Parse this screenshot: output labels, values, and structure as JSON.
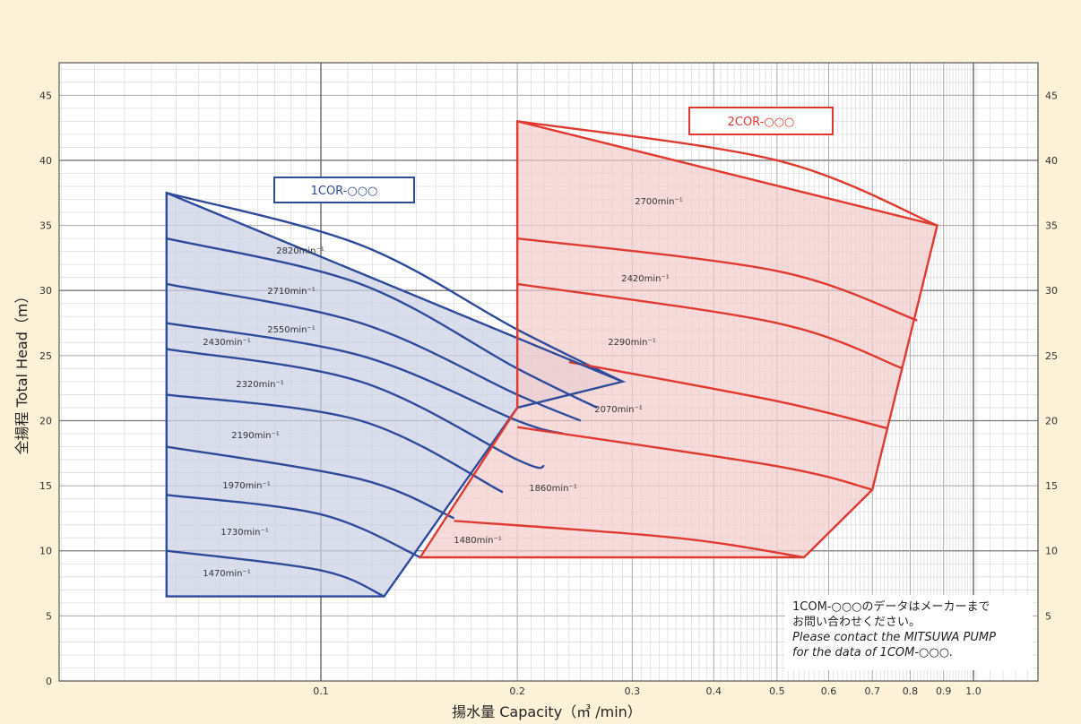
{
  "chart_data": {
    "type": "line",
    "xlabel": "揚水量  Capacity（㎥ /min）",
    "ylabel": "全揚程  Total Head（m）",
    "x_ticks": [
      "0.1",
      "0.2",
      "0.3",
      "0.4",
      "0.5",
      "0.6",
      "0.7",
      "0.8",
      "0.9",
      "1.0"
    ],
    "y_ticks": [
      "0",
      "5",
      "10",
      "15",
      "20",
      "25",
      "30",
      "35",
      "40",
      "45"
    ],
    "grid": true,
    "series": [
      {
        "name": "1COR-○○○",
        "color": "#2e4a9a",
        "fill": "#cdd2e6",
        "envelope": [
          [
            0.058,
            37.5
          ],
          [
            0.058,
            6.5
          ],
          [
            0.125,
            6.5
          ],
          [
            0.2,
            21
          ],
          [
            0.29,
            23
          ]
        ],
        "curves": [
          {
            "label": "2820min⁻¹",
            "points": [
              [
                0.058,
                37.5
              ],
              [
                0.115,
                33.5
              ],
              [
                0.2,
                27
              ],
              [
                0.29,
                23
              ]
            ]
          },
          {
            "label": "2710min⁻¹",
            "points": [
              [
                0.058,
                34
              ],
              [
                0.115,
                30.5
              ],
              [
                0.2,
                24
              ],
              [
                0.265,
                21
              ]
            ]
          },
          {
            "label": "2550min⁻¹",
            "points": [
              [
                0.058,
                30.5
              ],
              [
                0.115,
                27.5
              ],
              [
                0.2,
                22
              ],
              [
                0.25,
                20
              ]
            ]
          },
          {
            "label": "2430min⁻¹",
            "points": [
              [
                0.058,
                27.5
              ],
              [
                0.115,
                25
              ],
              [
                0.2,
                20
              ],
              [
                0.235,
                19
              ]
            ]
          },
          {
            "label": "2320min⁻¹",
            "points": [
              [
                0.058,
                25.5
              ],
              [
                0.115,
                23
              ],
              [
                0.2,
                17
              ],
              [
                0.22,
                16.5
              ]
            ]
          },
          {
            "label": "2190min⁻¹",
            "points": [
              [
                0.058,
                22
              ],
              [
                0.115,
                20
              ],
              [
                0.19,
                14.5
              ]
            ]
          },
          {
            "label": "1970min⁻¹",
            "points": [
              [
                0.058,
                18
              ],
              [
                0.115,
                15.5
              ],
              [
                0.16,
                12.5
              ]
            ]
          },
          {
            "label": "1730min⁻¹",
            "points": [
              [
                0.058,
                14.3
              ],
              [
                0.1,
                12.8
              ],
              [
                0.142,
                9.5
              ]
            ]
          },
          {
            "label": "1470min⁻¹",
            "points": [
              [
                0.058,
                10
              ],
              [
                0.1,
                8.5
              ],
              [
                0.125,
                6.5
              ]
            ]
          }
        ]
      },
      {
        "name": "2COR-○○○",
        "color": "#e03a30",
        "fill": "#f4cccc",
        "envelope": [
          [
            0.2,
            43
          ],
          [
            0.2,
            21
          ],
          [
            0.142,
            9.5
          ],
          [
            0.55,
            9.5
          ],
          [
            0.7,
            14.7
          ],
          [
            0.88,
            35
          ]
        ],
        "curves": [
          {
            "label": "2700min⁻¹",
            "points": [
              [
                0.2,
                43
              ],
              [
                0.5,
                40
              ],
              [
                0.88,
                35
              ]
            ]
          },
          {
            "label": "2420min⁻¹",
            "points": [
              [
                0.2,
                34
              ],
              [
                0.5,
                31.5
              ],
              [
                0.82,
                27.7
              ]
            ]
          },
          {
            "label": "2290min⁻¹",
            "points": [
              [
                0.2,
                30.5
              ],
              [
                0.5,
                27.5
              ],
              [
                0.78,
                24
              ]
            ]
          },
          {
            "label": "2070min⁻¹",
            "points": [
              [
                0.24,
                24.5
              ],
              [
                0.5,
                21.5
              ],
              [
                0.74,
                19.4
              ]
            ]
          },
          {
            "label": "1860min⁻¹",
            "points": [
              [
                0.2,
                19.5
              ],
              [
                0.5,
                16.5
              ],
              [
                0.7,
                14.7
              ]
            ]
          },
          {
            "label": "1480min⁻¹",
            "points": [
              [
                0.16,
                12.3
              ],
              [
                0.35,
                11
              ],
              [
                0.55,
                9.5
              ]
            ]
          }
        ]
      }
    ]
  },
  "note": {
    "line1": "1COM-○○○のデータはメーカーまで",
    "line2": "お問い合わせください。",
    "line3": "Please contact the MITSUWA PUMP",
    "line4": "for the data of 1COM-○○○."
  }
}
